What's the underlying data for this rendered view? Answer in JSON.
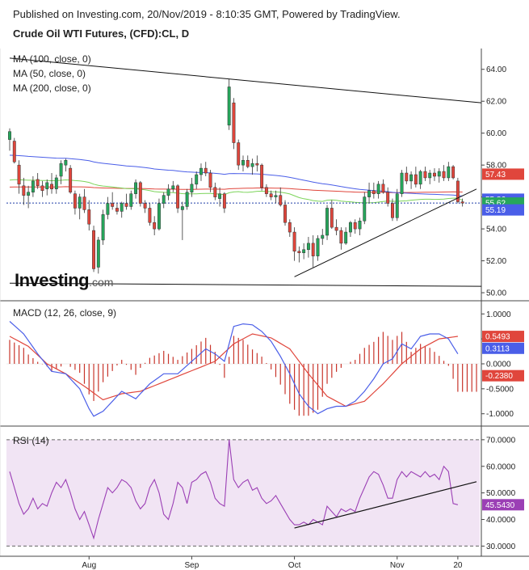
{
  "header": {
    "published": "Published on Investing.com, 20/Nov/2019 - 8:10:35 GMT, Powered by TradingView.",
    "title": "Crude Oil WTI Futures, (CFD):CL, D"
  },
  "logo": {
    "main": "Investing",
    "suffix": ".com"
  },
  "colors": {
    "up": "#26a65b",
    "down": "#e0463c",
    "ma100": "#4a5ee8",
    "ma50": "#7cd45a",
    "ma200": "#e0463c",
    "macd": "#4a5ee8",
    "signal": "#e0463c",
    "hist": "#c8352b",
    "rsi": "#9b3fb5",
    "rsi_bg": "#f1e4f4",
    "price_line": "#1f3fa8"
  },
  "chart_data": [
    {
      "type": "candlestick",
      "panel": "price",
      "legend": [
        "MA (100, close, 0)",
        "MA (50, close, 0)",
        "MA (200, close, 0)"
      ],
      "yticks": [
        50.0,
        52.0,
        54.0,
        56.0,
        58.0,
        60.0,
        62.0,
        64.0
      ],
      "ytick_labels": [
        "50.00",
        "52.00",
        "54.00",
        "56.00",
        "58.00",
        "60.00",
        "62.00",
        "64.00"
      ],
      "ylim": [
        49.8,
        65.0
      ],
      "xticks": [
        {
          "label": "Aug",
          "index": 17
        },
        {
          "label": "Sep",
          "index": 39
        },
        {
          "label": "Oct",
          "index": 61
        },
        {
          "label": "Nov",
          "index": 83
        },
        {
          "label": "20",
          "index": 96
        }
      ],
      "tags": [
        {
          "text": "57.43",
          "value": 57.43,
          "bg": "#e0463c",
          "fg": "#ffffff"
        },
        {
          "text": "55.86",
          "value": 55.86,
          "bg": "#4a5ee8",
          "fg": "#ffffff"
        },
        {
          "text": "55.62",
          "value": 55.62,
          "bg": "#26a65b",
          "fg": "#ffffff"
        },
        {
          "text": "55.19",
          "value": 55.19,
          "bg": "#4a5ee8",
          "fg": "#ffffff"
        }
      ],
      "last_price": 55.62,
      "candles": [
        [
          59.6,
          60.3,
          58.9,
          60.1
        ],
        [
          59.5,
          59.7,
          58.1,
          58.2
        ],
        [
          58.0,
          58.3,
          56.2,
          56.8
        ],
        [
          56.7,
          57.2,
          55.5,
          56.1
        ],
        [
          56.1,
          56.7,
          55.3,
          56.3
        ],
        [
          56.3,
          57.3,
          56.0,
          57.0
        ],
        [
          57.1,
          57.5,
          56.5,
          56.7
        ],
        [
          56.7,
          57.0,
          56.0,
          56.4
        ],
        [
          56.5,
          57.1,
          56.1,
          56.9
        ],
        [
          56.8,
          57.5,
          56.2,
          56.5
        ],
        [
          56.5,
          57.4,
          56.2,
          57.2
        ],
        [
          57.3,
          58.3,
          56.8,
          58.1
        ],
        [
          58.0,
          58.4,
          57.6,
          58.3
        ],
        [
          57.8,
          58.0,
          56.2,
          56.3
        ],
        [
          56.2,
          56.4,
          54.9,
          55.3
        ],
        [
          55.3,
          56.2,
          54.6,
          56.0
        ],
        [
          56.0,
          56.5,
          55.0,
          55.2
        ],
        [
          55.2,
          55.8,
          53.9,
          54.3
        ],
        [
          53.9,
          54.2,
          51.3,
          51.5
        ],
        [
          51.6,
          53.5,
          51.2,
          53.3
        ],
        [
          53.3,
          55.2,
          53.0,
          54.9
        ],
        [
          54.9,
          56.0,
          54.6,
          55.6
        ],
        [
          55.6,
          56.3,
          55.2,
          55.4
        ],
        [
          55.3,
          55.6,
          54.9,
          55.1
        ],
        [
          55.1,
          55.7,
          54.7,
          55.6
        ],
        [
          55.6,
          56.2,
          55.2,
          55.4
        ],
        [
          55.4,
          56.4,
          55.2,
          56.2
        ],
        [
          56.2,
          57.1,
          55.9,
          56.9
        ],
        [
          56.9,
          57.0,
          55.4,
          55.6
        ],
        [
          55.6,
          55.8,
          55.0,
          55.3
        ],
        [
          55.3,
          55.6,
          54.2,
          54.4
        ],
        [
          54.4,
          54.8,
          53.6,
          54.0
        ],
        [
          54.0,
          55.9,
          53.9,
          55.6
        ],
        [
          55.6,
          56.3,
          55.3,
          56.1
        ],
        [
          56.1,
          56.8,
          55.8,
          56.5
        ],
        [
          56.5,
          57.0,
          56.3,
          56.7
        ],
        [
          56.7,
          56.8,
          55.0,
          55.3
        ],
        [
          55.2,
          55.7,
          53.3,
          55.4
        ],
        [
          55.4,
          56.5,
          55.2,
          56.3
        ],
        [
          56.3,
          57.2,
          56.0,
          56.8
        ],
        [
          56.8,
          57.6,
          56.5,
          57.4
        ],
        [
          57.4,
          58.1,
          57.0,
          57.8
        ],
        [
          57.8,
          58.2,
          57.3,
          57.5
        ],
        [
          57.5,
          57.7,
          56.3,
          56.6
        ],
        [
          56.6,
          56.9,
          55.8,
          56.0
        ],
        [
          55.9,
          56.6,
          55.4,
          56.2
        ],
        [
          56.2,
          56.3,
          55.0,
          55.3
        ],
        [
          60.5,
          63.4,
          60.2,
          62.9
        ],
        [
          61.9,
          62.2,
          59.0,
          59.4
        ],
        [
          59.4,
          59.6,
          57.7,
          58.0
        ],
        [
          58.0,
          58.6,
          57.6,
          58.3
        ],
        [
          58.3,
          58.6,
          57.8,
          57.9
        ],
        [
          57.9,
          58.4,
          57.4,
          58.1
        ],
        [
          58.1,
          58.6,
          57.6,
          58.0
        ],
        [
          58.0,
          58.1,
          56.4,
          56.6
        ],
        [
          56.6,
          56.8,
          56.0,
          56.2
        ],
        [
          56.2,
          56.4,
          55.8,
          56.0
        ],
        [
          56.0,
          56.4,
          55.6,
          56.1
        ],
        [
          56.1,
          56.6,
          55.4,
          55.5
        ],
        [
          55.5,
          55.8,
          54.2,
          54.4
        ],
        [
          54.4,
          54.6,
          53.5,
          53.8
        ],
        [
          53.8,
          54.1,
          52.0,
          52.6
        ],
        [
          52.6,
          52.9,
          51.9,
          52.5
        ],
        [
          52.5,
          53.1,
          52.1,
          52.7
        ],
        [
          52.7,
          53.5,
          52.2,
          53.1
        ],
        [
          53.1,
          53.6,
          51.6,
          52.3
        ],
        [
          52.3,
          53.6,
          52.0,
          53.4
        ],
        [
          53.4,
          54.0,
          53.0,
          53.6
        ],
        [
          53.6,
          55.5,
          53.3,
          55.3
        ],
        [
          55.3,
          55.8,
          54.0,
          54.1
        ],
        [
          54.1,
          54.6,
          53.6,
          53.9
        ],
        [
          53.9,
          54.1,
          52.7,
          53.1
        ],
        [
          53.1,
          54.1,
          53.0,
          53.8
        ],
        [
          53.8,
          54.5,
          53.5,
          54.4
        ],
        [
          54.4,
          54.6,
          53.7,
          54.0
        ],
        [
          54.0,
          54.7,
          53.6,
          54.5
        ],
        [
          54.5,
          56.3,
          54.3,
          56.0
        ],
        [
          56.0,
          56.9,
          55.6,
          56.4
        ],
        [
          56.4,
          56.9,
          55.9,
          56.2
        ],
        [
          56.2,
          57.0,
          55.9,
          56.8
        ],
        [
          56.8,
          57.1,
          56.2,
          56.3
        ],
        [
          56.3,
          56.6,
          55.4,
          55.6
        ],
        [
          55.6,
          55.9,
          54.5,
          54.7
        ],
        [
          54.7,
          56.5,
          54.5,
          56.2
        ],
        [
          56.2,
          57.7,
          56.0,
          57.5
        ],
        [
          57.5,
          57.9,
          56.8,
          57.0
        ],
        [
          57.0,
          57.6,
          56.5,
          57.4
        ],
        [
          57.4,
          57.9,
          56.6,
          56.8
        ],
        [
          56.8,
          57.7,
          56.5,
          57.6
        ],
        [
          57.6,
          57.9,
          57.0,
          57.2
        ],
        [
          57.2,
          57.7,
          56.8,
          57.5
        ],
        [
          57.5,
          57.8,
          57.0,
          57.3
        ],
        [
          57.3,
          57.8,
          56.9,
          57.6
        ],
        [
          57.6,
          58.0,
          57.0,
          57.2
        ],
        [
          57.2,
          58.2,
          57.0,
          57.9
        ],
        [
          57.9,
          58.0,
          57.1,
          57.2
        ],
        [
          57.0,
          57.2,
          55.6,
          55.7
        ],
        [
          55.7,
          55.9,
          55.4,
          55.62
        ]
      ],
      "trendlines": [
        {
          "name": "upper",
          "from": [
            0,
            64.7
          ],
          "to": [
            101,
            61.9
          ]
        },
        {
          "name": "lower",
          "from": [
            0,
            50.6
          ],
          "to": [
            101,
            50.4
          ]
        },
        {
          "name": "rising",
          "from": [
            61,
            51.0
          ],
          "to": [
            100,
            56.5
          ]
        }
      ]
    },
    {
      "type": "line",
      "panel": "macd",
      "title": "MACD (12, 26, close, 9)",
      "yticks": [
        1.0,
        0.5,
        0.0,
        -0.5,
        -1.0
      ],
      "ytick_labels": [
        "1.0000",
        "0.5000",
        "0.0000",
        "-0.5000",
        "-1.0000"
      ],
      "ylim": [
        -1.15,
        1.15
      ],
      "tags": [
        {
          "text": "0.5493",
          "value": 0.5493,
          "bg": "#e0463c",
          "fg": "#ffffff"
        },
        {
          "text": "0.3113",
          "value": 0.3113,
          "bg": "#4a5ee8",
          "fg": "#ffffff"
        },
        {
          "text": "-0.2380",
          "value": -0.238,
          "bg": "#e0463c",
          "fg": "#ffffff"
        }
      ],
      "macd_keys": [
        [
          0,
          0.85
        ],
        [
          3,
          0.6
        ],
        [
          6,
          0.2
        ],
        [
          9,
          -0.15
        ],
        [
          12,
          -0.2
        ],
        [
          15,
          -0.5
        ],
        [
          17,
          -0.9
        ],
        [
          18,
          -1.05
        ],
        [
          20,
          -0.95
        ],
        [
          22,
          -0.75
        ],
        [
          24,
          -0.55
        ],
        [
          27,
          -0.7
        ],
        [
          30,
          -0.4
        ],
        [
          33,
          -0.2
        ],
        [
          36,
          -0.2
        ],
        [
          39,
          0.05
        ],
        [
          42,
          0.3
        ],
        [
          44,
          0.2
        ],
        [
          46,
          0.05
        ],
        [
          48,
          0.75
        ],
        [
          50,
          0.8
        ],
        [
          52,
          0.78
        ],
        [
          54,
          0.65
        ],
        [
          56,
          0.45
        ],
        [
          58,
          0.15
        ],
        [
          60,
          -0.2
        ],
        [
          62,
          -0.6
        ],
        [
          64,
          -0.85
        ],
        [
          66,
          -1.0
        ],
        [
          68,
          -0.9
        ],
        [
          70,
          -0.85
        ],
        [
          72,
          -0.85
        ],
        [
          74,
          -0.75
        ],
        [
          76,
          -0.55
        ],
        [
          78,
          -0.3
        ],
        [
          80,
          0.0
        ],
        [
          82,
          0.1
        ],
        [
          84,
          0.4
        ],
        [
          86,
          0.3
        ],
        [
          88,
          0.55
        ],
        [
          90,
          0.6
        ],
        [
          92,
          0.6
        ],
        [
          94,
          0.5
        ],
        [
          96,
          0.2
        ]
      ],
      "signal_keys": [
        [
          0,
          0.55
        ],
        [
          4,
          0.35
        ],
        [
          8,
          0.0
        ],
        [
          12,
          -0.2
        ],
        [
          16,
          -0.45
        ],
        [
          20,
          -0.72
        ],
        [
          24,
          -0.6
        ],
        [
          28,
          -0.55
        ],
        [
          32,
          -0.4
        ],
        [
          36,
          -0.25
        ],
        [
          40,
          -0.1
        ],
        [
          44,
          0.05
        ],
        [
          48,
          0.4
        ],
        [
          52,
          0.6
        ],
        [
          56,
          0.52
        ],
        [
          60,
          0.3
        ],
        [
          64,
          -0.2
        ],
        [
          68,
          -0.65
        ],
        [
          72,
          -0.85
        ],
        [
          76,
          -0.75
        ],
        [
          80,
          -0.4
        ],
        [
          84,
          0.0
        ],
        [
          88,
          0.3
        ],
        [
          92,
          0.5
        ],
        [
          96,
          0.55
        ]
      ],
      "hist_note": "histogram = macd - signal"
    },
    {
      "type": "line",
      "panel": "rsi",
      "title": "RSI (14)",
      "yticks": [
        70,
        60,
        50,
        40,
        30
      ],
      "ytick_labels": [
        "70.0000",
        "60.0000",
        "50.0000",
        "40.0000",
        "30.0000"
      ],
      "ylim": [
        28,
        73
      ],
      "bands": [
        30,
        70
      ],
      "tags": [
        {
          "text": "45.5430",
          "value": 45.543,
          "bg": "#9b3fb5",
          "fg": "#ffffff"
        }
      ],
      "values": [
        58,
        52,
        46,
        42,
        44,
        48,
        44,
        46,
        45,
        50,
        54,
        52,
        55,
        50,
        44,
        40,
        43,
        38,
        33,
        40,
        46,
        52,
        50,
        52,
        55,
        54,
        52,
        47,
        44,
        46,
        52,
        55,
        50,
        42,
        40,
        46,
        54,
        52,
        46,
        54,
        55,
        57,
        58,
        54,
        48,
        46,
        45,
        70,
        55,
        52,
        54,
        55,
        51,
        52,
        48,
        46,
        47,
        49,
        46,
        43,
        40,
        38,
        38,
        39,
        38,
        40,
        39,
        38,
        45,
        43,
        41,
        44,
        43,
        44,
        43,
        48,
        52,
        56,
        58,
        57,
        53,
        48,
        48,
        55,
        58,
        56,
        58,
        57,
        56,
        58,
        56,
        57,
        55,
        60,
        58,
        46,
        45.543
      ],
      "trendline": {
        "from": [
          61,
          36.8
        ],
        "to": [
          100,
          54.2
        ]
      }
    }
  ]
}
